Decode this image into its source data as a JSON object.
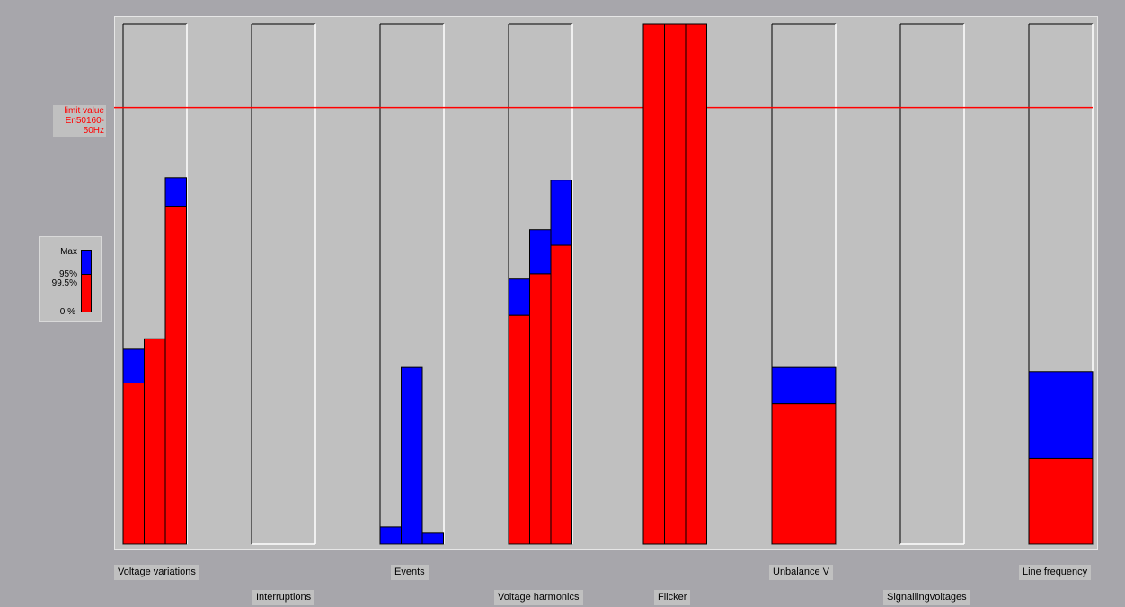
{
  "chart_data": {
    "type": "bar",
    "limit_label_line1": "limit value",
    "limit_label_line2": "En50160-50Hz",
    "limit_percent": 84,
    "ylim": [
      0,
      100
    ],
    "legend": {
      "max": "Max",
      "p95": "95%",
      "p995": "99.5%",
      "zero": "0 %"
    },
    "colors": {
      "percentile": "#ff0000",
      "max": "#0000ff",
      "limit": "#ff0000",
      "plot_bg": "#c0c0c0"
    },
    "groups": [
      {
        "name": "Voltage variations",
        "bars": [
          {
            "p": 31,
            "max": 37.5
          },
          {
            "p": 39.5,
            "max": 39.5
          },
          {
            "p": 65,
            "max": 70.5
          }
        ]
      },
      {
        "name": "Interruptions",
        "bars": []
      },
      {
        "name": "Events",
        "bars": [
          {
            "p": 0,
            "max": 3.3
          },
          {
            "p": 0,
            "max": 34
          },
          {
            "p": 0,
            "max": 2.1
          }
        ]
      },
      {
        "name": "Voltage harmonics",
        "bars": [
          {
            "p": 44,
            "max": 51
          },
          {
            "p": 52,
            "max": 60.5
          },
          {
            "p": 57.5,
            "max": 70
          }
        ]
      },
      {
        "name": "Flicker",
        "bars": [
          {
            "p": 100,
            "max": 100
          },
          {
            "p": 100,
            "max": 100
          },
          {
            "p": 100,
            "max": 100
          }
        ]
      },
      {
        "name": "Unbalance V",
        "bars": [
          {
            "p": 27,
            "max": 34
          }
        ]
      },
      {
        "name": "Signallingvoltages",
        "bars": []
      },
      {
        "name": "Line frequency",
        "bars": [
          {
            "p": 16.5,
            "max": 33.2
          }
        ]
      }
    ]
  }
}
